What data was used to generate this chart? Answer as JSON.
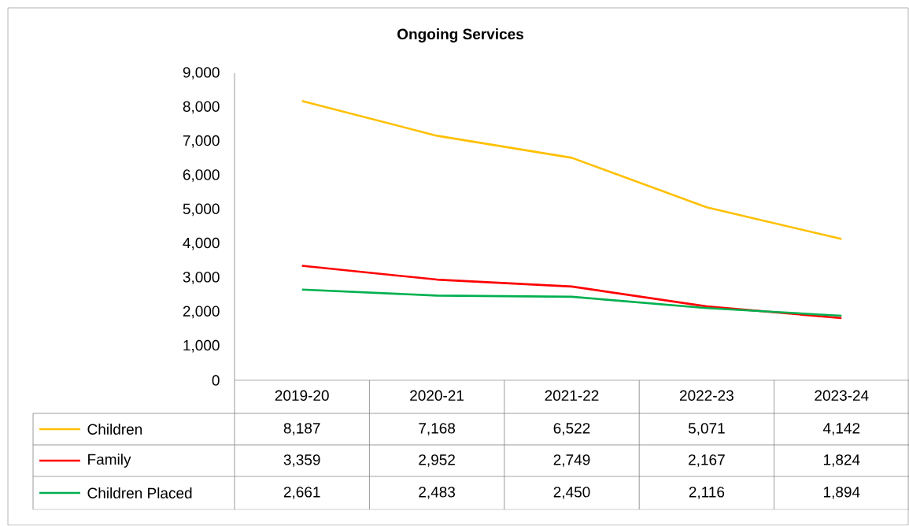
{
  "chart_data": {
    "type": "line",
    "title": "Ongoing Services",
    "categories": [
      "2019-20",
      "2020-21",
      "2021-22",
      "2022-23",
      "2023-24"
    ],
    "series": [
      {
        "name": "Children",
        "color": "#ffc000",
        "values": [
          8187,
          7168,
          6522,
          5071,
          4142
        ],
        "value_labels": [
          "8,187",
          "7,168",
          "6,522",
          "5,071",
          "4,142"
        ]
      },
      {
        "name": "Family",
        "color": "#ff0000",
        "values": [
          3359,
          2952,
          2749,
          2167,
          1824
        ],
        "value_labels": [
          "3,359",
          "2,952",
          "2,749",
          "2,167",
          "1,824"
        ]
      },
      {
        "name": "Children Placed",
        "color": "#00b050",
        "values": [
          2661,
          2483,
          2450,
          2116,
          1894
        ],
        "value_labels": [
          "2,661",
          "2,483",
          "2,450",
          "2,116",
          "1,894"
        ]
      }
    ],
    "ylim": [
      0,
      9000
    ],
    "yticks": [
      0,
      {
        "value": 1000,
        "label": "1,000"
      },
      {
        "value": 2000,
        "label": "2,000"
      },
      {
        "value": 3000,
        "label": "3,000"
      },
      {
        "value": 4000,
        "label": "4,000"
      },
      {
        "value": 5000,
        "label": "5,000"
      },
      {
        "value": 6000,
        "label": "6,000"
      },
      {
        "value": 7000,
        "label": "7,000"
      },
      {
        "value": 8000,
        "label": "8,000"
      },
      {
        "value": 9000,
        "label": "9,000"
      }
    ],
    "legend": "bottom"
  }
}
